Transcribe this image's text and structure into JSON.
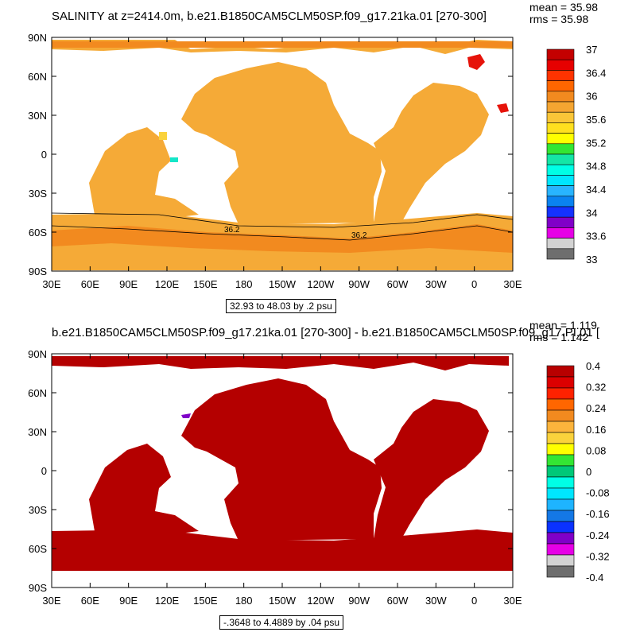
{
  "map_top": {
    "title": "SALINITY at z=2414.0m, b.e21.B1850CAM5CLM50SP.f09_g17.21ka.01 [270-300]",
    "stats": [
      "mean = 35.98",
      "rms = 35.98"
    ],
    "range_label": "32.93 to 48.03 by .2 psu",
    "contour_labels": [
      "36.2",
      "36.2"
    ],
    "colorbar": {
      "labels": [
        "37",
        "36.4",
        "36",
        "35.6",
        "35.2",
        "34.8",
        "34.4",
        "34",
        "33.6",
        "33"
      ],
      "colors": [
        "#c40000",
        "#e60000",
        "#ff3300",
        "#ff6600",
        "#f28a1f",
        "#f5a531",
        "#fac638",
        "#ffe01f",
        "#ffff00",
        "#33e633",
        "#14e6a6",
        "#00ffe6",
        "#00e6ff",
        "#28b4ff",
        "#0a82f0",
        "#1432ff",
        "#8000c8",
        "#e600e6",
        "#d2d2d2",
        "#6e6e6e"
      ]
    },
    "ocean_color": "#f5aa37",
    "band_color": "#f28a1f",
    "red_patch_color": "#e6130a"
  },
  "map_bottom": {
    "title": "b.e21.B1850CAM5CLM50SP.f09_g17.21ka.01 [270-300] - b.e21.B1850CAM5CLM50SP.f09_g17.PI.01 [",
    "stats": [
      "mean = 1.119",
      "rms = 1.142"
    ],
    "range_label": "-.3648 to 4.4889 by .04 psu",
    "colorbar": {
      "labels": [
        "0.4",
        "0.32",
        "0.24",
        "0.16",
        "0.08",
        "0",
        "-0.08",
        "-0.16",
        "-0.24",
        "-0.32",
        "-0.4"
      ],
      "colors": [
        "#b80000",
        "#dc0000",
        "#ff2200",
        "#ff6600",
        "#f28a1f",
        "#fcb43c",
        "#fad23c",
        "#ffff00",
        "#33e633",
        "#00c878",
        "#00ffe6",
        "#00e6ff",
        "#1eb4ff",
        "#1478e6",
        "#0a32ff",
        "#8000c8",
        "#e600e6",
        "#d2d2d2",
        "#6e6e6e"
      ]
    },
    "ocean_color": "#b40000"
  },
  "axes": {
    "lon_labels": [
      "30E",
      "60E",
      "90E",
      "120E",
      "150E",
      "180",
      "150W",
      "120W",
      "90W",
      "60W",
      "30W",
      "0",
      "30E"
    ],
    "lat_labels": [
      "90N",
      "60N",
      "30N",
      "0",
      "30S",
      "60S",
      "90S"
    ]
  }
}
